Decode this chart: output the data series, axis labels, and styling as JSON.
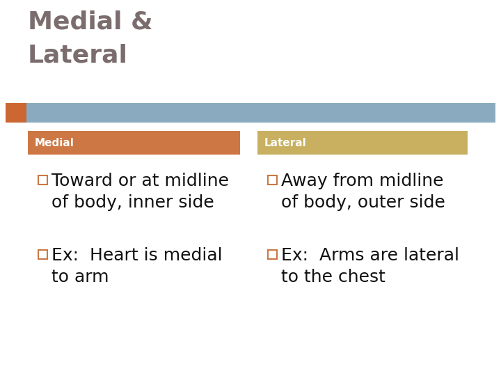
{
  "title_line1": "Medial &",
  "title_line2": "Lateral",
  "title_color": "#7B6D6D",
  "title_fontsize": 26,
  "title_fontweight": "bold",
  "bg_color": "#FFFFFF",
  "header_bar_color": "#8AAABF",
  "orange_color": "#CC6633",
  "col1_header_color": "#CC7744",
  "col2_header_color": "#C8B060",
  "col1_header_label": "Medial",
  "col2_header_label": "Lateral",
  "col_header_fontsize": 11,
  "col_header_fontcolor": "#FFFFFF",
  "col_header_fontweight": "bold",
  "col1_bullet1_text": "Toward or at midline\nof body, inner side",
  "col1_bullet2_text": "Ex:  Heart is medial\nto arm",
  "col2_bullet1_text": "Away from midline\nof body, outer side",
  "col2_bullet2_text": "Ex:  Arms are lateral\nto the chest",
  "body_fontsize": 18,
  "body_fontcolor": "#111111",
  "bullet_box_color": "#CC7744"
}
